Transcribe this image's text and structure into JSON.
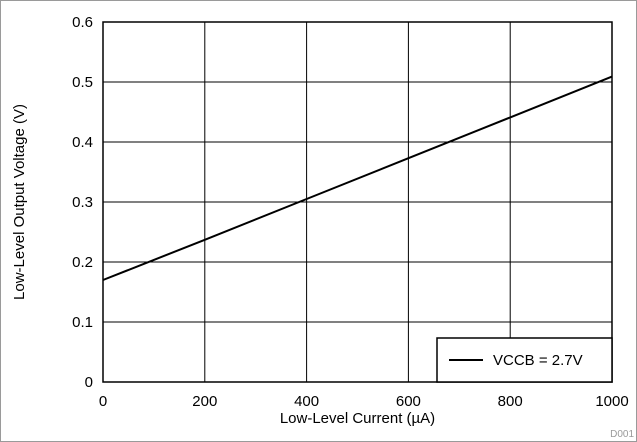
{
  "figure_id": "D001",
  "chart_data": {
    "type": "line",
    "xlabel": "Low-Level Current (µA)",
    "ylabel": "Low-Level Output Voltage (V)",
    "xlim": [
      0,
      1000
    ],
    "ylim": [
      0,
      0.6
    ],
    "x_ticks": [
      "0",
      "200",
      "400",
      "600",
      "800",
      "1000"
    ],
    "y_ticks": [
      "0",
      "0.1",
      "0.2",
      "0.3",
      "0.4",
      "0.5",
      "0.6"
    ],
    "grid": true,
    "legend_position": "bottom-right",
    "series": [
      {
        "name": "VCCB = 2.7V",
        "color": "#000000",
        "x": [
          0,
          200,
          400,
          600,
          800,
          1000
        ],
        "y": [
          0.17,
          0.237,
          0.305,
          0.373,
          0.441,
          0.509
        ]
      }
    ]
  }
}
